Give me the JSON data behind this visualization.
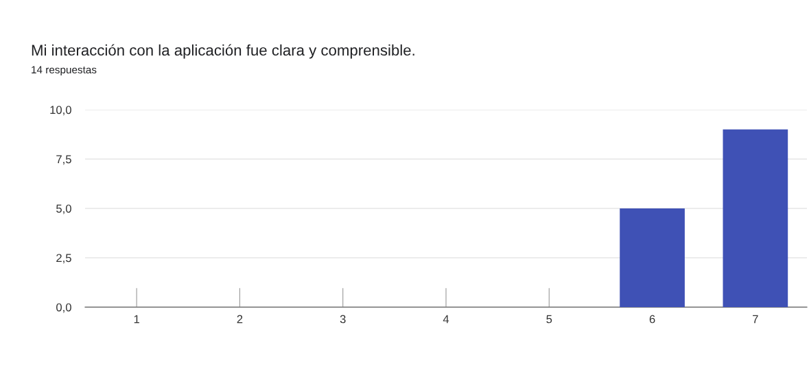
{
  "chart_data": {
    "type": "bar",
    "title": "Mi interacción con la aplicación fue clara y comprensible.",
    "subtitle": "14 respuestas",
    "categories": [
      "1",
      "2",
      "3",
      "4",
      "5",
      "6",
      "7"
    ],
    "values": [
      0,
      0,
      0,
      0,
      0,
      5,
      9
    ],
    "color": "#3f51b5",
    "ylim": [
      0,
      10
    ],
    "yticks": [
      {
        "value": 0,
        "label": "0,0"
      },
      {
        "value": 2.5,
        "label": "2,5"
      },
      {
        "value": 5,
        "label": "5,0"
      },
      {
        "value": 7.5,
        "label": "7,5"
      },
      {
        "value": 10,
        "label": "10,0"
      }
    ],
    "grid": "y",
    "legend": false
  }
}
